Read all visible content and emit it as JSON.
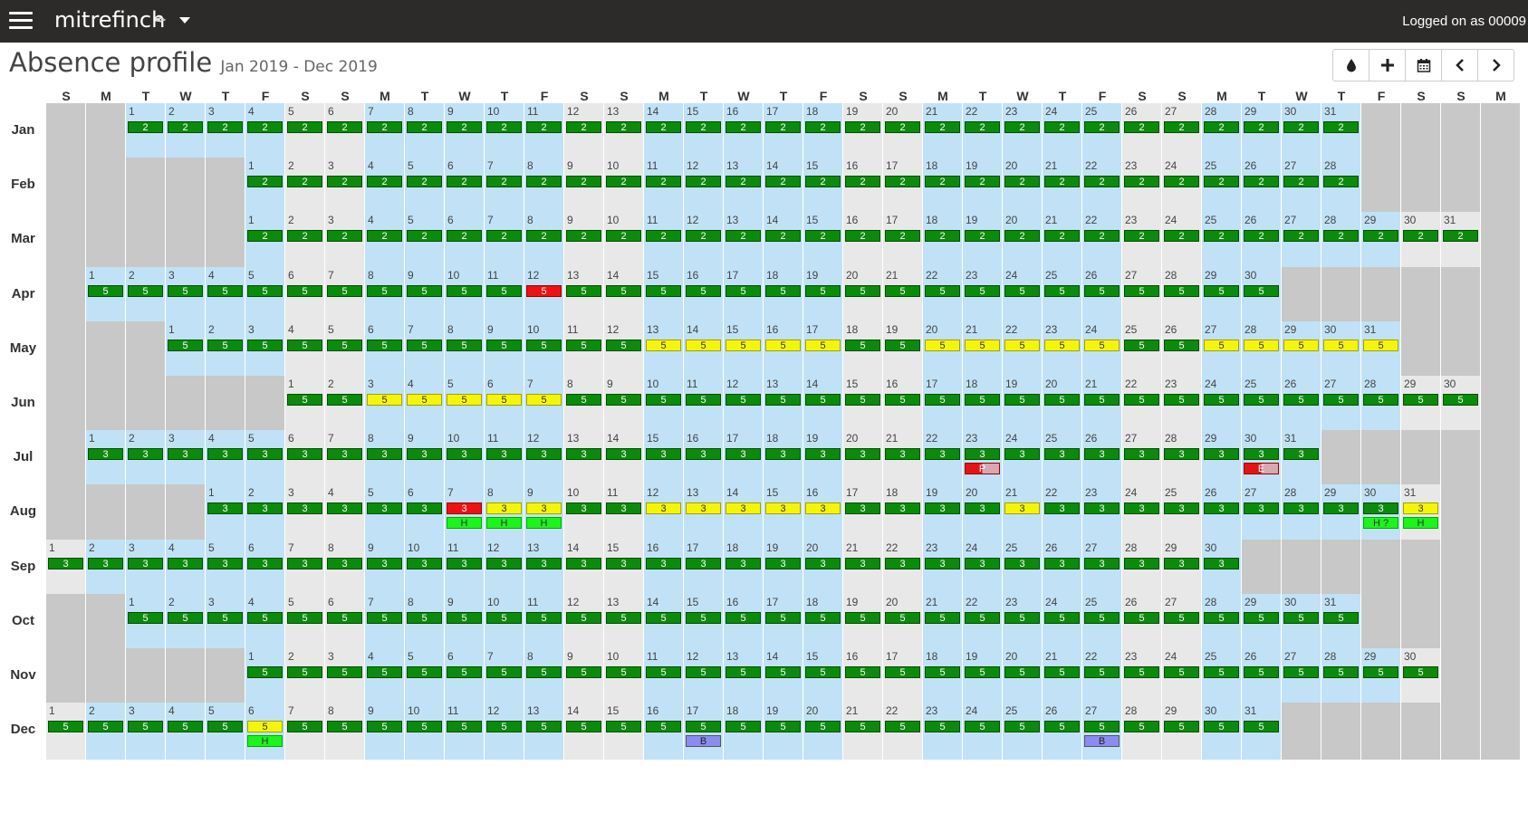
{
  "app": {
    "brand": "mitrefinch",
    "brand_icon": "quill-icon",
    "logged_in_text": "Logged on as 00009"
  },
  "page": {
    "title": "Absence profile",
    "date_range": "Jan 2019 - Dec 2019"
  },
  "toolbar": [
    "drop-icon",
    "plus-icon",
    "calendar-icon",
    "chevron-left-icon",
    "chevron-right-icon"
  ],
  "legend_colors": {
    "green": "#0c8a0c",
    "yellow": "#f5f50a",
    "red": "#ee1111",
    "holiday": "#1cf41c",
    "booked": "#8b8cf0",
    "working_day_bg": "#c1e2f6",
    "weekend_bg": "#e8e8e8",
    "empty_bg": "#c8c8c8"
  },
  "day_headers": [
    "S",
    "M",
    "T",
    "W",
    "T",
    "F",
    "S",
    "S",
    "M",
    "T",
    "W",
    "T",
    "F",
    "S",
    "S",
    "M",
    "T",
    "W",
    "T",
    "F",
    "S",
    "S",
    "M",
    "T",
    "W",
    "T",
    "F",
    "S",
    "S",
    "M",
    "T",
    "W",
    "T",
    "F",
    "S",
    "S",
    "M"
  ],
  "months": [
    {
      "name": "Jan",
      "offset": 2,
      "days": 31,
      "value": "2",
      "yellow": [],
      "red": [],
      "second": {}
    },
    {
      "name": "Feb",
      "offset": 5,
      "days": 28,
      "value": "2",
      "yellow": [],
      "red": [],
      "second": {}
    },
    {
      "name": "Mar",
      "offset": 5,
      "days": 31,
      "value": "2",
      "yellow": [],
      "red": [],
      "second": {}
    },
    {
      "name": "Apr",
      "offset": 1,
      "days": 30,
      "value": "5",
      "yellow": [],
      "red": [
        12
      ],
      "second": {}
    },
    {
      "name": "May",
      "offset": 3,
      "days": 31,
      "value": "5",
      "yellow": [
        13,
        14,
        15,
        16,
        17,
        20,
        21,
        22,
        23,
        24,
        27,
        28,
        29,
        30,
        31
      ],
      "red": [],
      "second": {}
    },
    {
      "name": "Jun",
      "offset": 6,
      "days": 30,
      "value": "5",
      "yellow": [
        3,
        4,
        5,
        6,
        7
      ],
      "red": [],
      "second": {}
    },
    {
      "name": "Jul",
      "offset": 1,
      "days": 31,
      "value": "3",
      "yellow": [],
      "red": [],
      "second": {
        "23": {
          "label": "P",
          "type": "p"
        },
        "30": {
          "label": "E",
          "type": "p"
        }
      }
    },
    {
      "name": "Aug",
      "offset": 4,
      "days": 31,
      "value": "3",
      "yellow": [
        8,
        9,
        12,
        13,
        14,
        15,
        16,
        21,
        31
      ],
      "red": [
        7
      ],
      "second": {
        "7": {
          "label": "H",
          "type": "h"
        },
        "8": {
          "label": "H",
          "type": "h"
        },
        "9": {
          "label": "H",
          "type": "h"
        },
        "30": {
          "label": "H ?",
          "type": "h"
        },
        "31": {
          "label": "H",
          "type": "h"
        }
      }
    },
    {
      "name": "Sep",
      "offset": 0,
      "days": 30,
      "value": "3",
      "yellow": [],
      "red": [],
      "second": {}
    },
    {
      "name": "Oct",
      "offset": 2,
      "days": 31,
      "value": "5",
      "yellow": [],
      "red": [],
      "second": {}
    },
    {
      "name": "Nov",
      "offset": 5,
      "days": 30,
      "value": "5",
      "yellow": [],
      "red": [],
      "second": {}
    },
    {
      "name": "Dec",
      "offset": 0,
      "days": 31,
      "value": "5",
      "yellow": [
        6
      ],
      "red": [],
      "second": {
        "6": {
          "label": "H",
          "type": "h"
        },
        "17": {
          "label": "B",
          "type": "b"
        },
        "27": {
          "label": "B",
          "type": "b"
        }
      }
    }
  ]
}
